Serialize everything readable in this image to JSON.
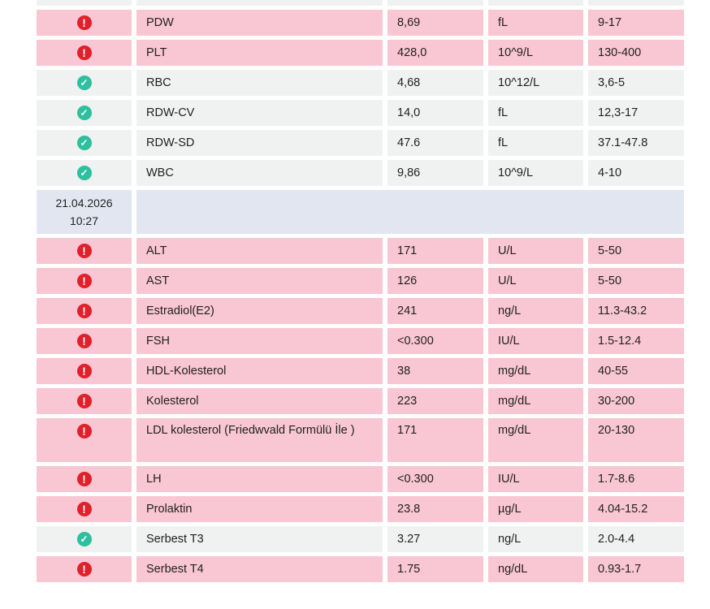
{
  "groups": [
    {
      "date": "",
      "time": "",
      "rows": [
        {
          "status": "normal",
          "name": "",
          "value": "",
          "unit": "",
          "range": ""
        },
        {
          "status": "abnormal",
          "name": "PDW",
          "value": "8,69",
          "unit": "fL",
          "range": "9-17"
        },
        {
          "status": "abnormal",
          "name": "PLT",
          "value": "428,0",
          "unit": "10^9/L",
          "range": "130-400"
        },
        {
          "status": "normal",
          "name": "RBC",
          "value": "4,68",
          "unit": "10^12/L",
          "range": "3,6-5"
        },
        {
          "status": "normal",
          "name": "RDW-CV",
          "value": "14,0",
          "unit": "fL",
          "range": "12,3-17"
        },
        {
          "status": "normal",
          "name": "RDW-SD",
          "value": "47.6",
          "unit": "fL",
          "range": "37.1-47.8"
        },
        {
          "status": "normal",
          "name": "WBC",
          "value": "9,86",
          "unit": "10^9/L",
          "range": "4-10"
        }
      ]
    },
    {
      "date": "21.04.2026",
      "time": "10:27",
      "rows": [
        {
          "status": "abnormal",
          "name": "ALT",
          "value": "171",
          "unit": "U/L",
          "range": "5-50"
        },
        {
          "status": "abnormal",
          "name": "AST",
          "value": "126",
          "unit": "U/L",
          "range": "5-50"
        },
        {
          "status": "abnormal",
          "name": "Estradiol(E2)",
          "value": "241",
          "unit": "ng/L",
          "range": "11.3-43.2"
        },
        {
          "status": "abnormal",
          "name": "FSH",
          "value": "<0.300",
          "unit": "IU/L",
          "range": "1.5-12.4"
        },
        {
          "status": "abnormal",
          "name": "HDL-Kolesterol",
          "value": "38",
          "unit": "mg/dL",
          "range": "40-55"
        },
        {
          "status": "abnormal",
          "name": "Kolesterol",
          "value": "223",
          "unit": "mg/dL",
          "range": "30-200"
        },
        {
          "status": "abnormal",
          "name": "LDL kolesterol (Friedwvald  Formülü İle )",
          "value": "171",
          "unit": "mg/dL",
          "range": "20-130"
        },
        {
          "status": "abnormal",
          "name": "LH",
          "value": "<0.300",
          "unit": "IU/L",
          "range": "1.7-8.6"
        },
        {
          "status": "abnormal",
          "name": "Prolaktin",
          "value": "23.8",
          "unit": "µg/L",
          "range": "4.04-15.2"
        },
        {
          "status": "normal",
          "name": "Serbest T3",
          "value": "3.27",
          "unit": "ng/L",
          "range": "2.0-4.4"
        },
        {
          "status": "abnormal",
          "name": "Serbest T4",
          "value": "1.75",
          "unit": "ng/dL",
          "range": "0.93-1.7"
        }
      ]
    }
  ],
  "icons": {
    "abnormal": "alert-circle-icon",
    "normal": "check-circle-icon"
  },
  "colors": {
    "abnormal_bg": "#f9c6d3",
    "normal_bg": "#f0f1f1",
    "date_bg": "#e2e6f1",
    "alert": "#e0202a",
    "check": "#2ebf9f"
  }
}
